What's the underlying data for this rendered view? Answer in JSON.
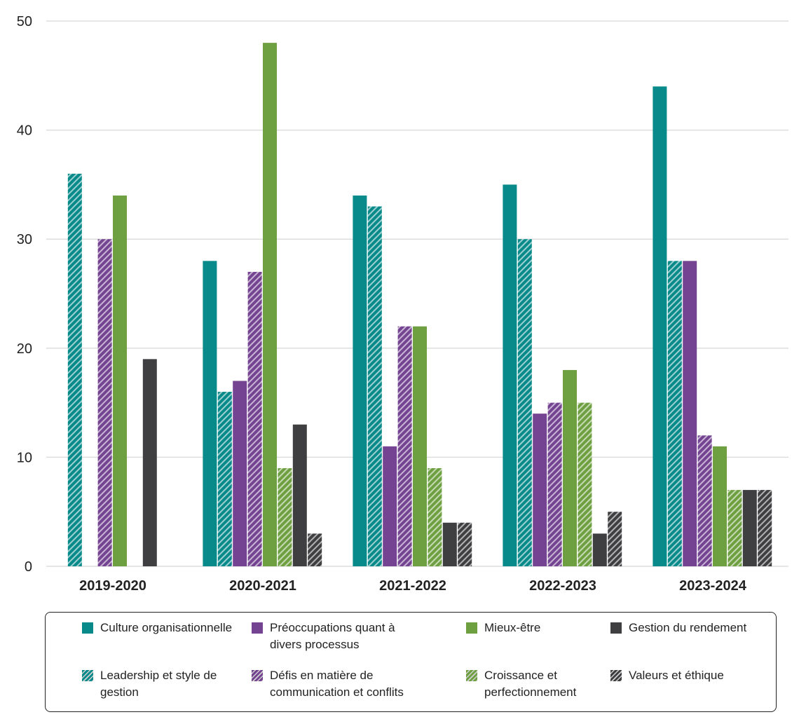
{
  "chart_data": {
    "type": "bar",
    "categories": [
      "2019-2020",
      "2020-2021",
      "2021-2022",
      "2022-2023",
      "2023-2024"
    ],
    "ylim": [
      0,
      50
    ],
    "yticks": [
      0,
      10,
      20,
      30,
      40,
      50
    ],
    "grid": true,
    "legend_placement": "bottom",
    "series": [
      {
        "name": "Culture organisationnelle",
        "color": "#088a8a",
        "hatched": false,
        "values": [
          0,
          28,
          34,
          35,
          44
        ]
      },
      {
        "name": "Leadership et style de gestion",
        "color": "#088a8a",
        "hatched": true,
        "values": [
          36,
          16,
          33,
          30,
          28
        ]
      },
      {
        "name": "Préoccupations quant à divers processus",
        "color": "#744391",
        "hatched": false,
        "values": [
          0,
          17,
          11,
          14,
          28
        ]
      },
      {
        "name": "Défis en matière de communication et conflits",
        "color": "#744391",
        "hatched": true,
        "values": [
          30,
          27,
          22,
          15,
          12
        ]
      },
      {
        "name": "Mieux-être",
        "color": "#6ea041",
        "hatched": false,
        "values": [
          34,
          48,
          22,
          18,
          11
        ]
      },
      {
        "name": "Croissance et perfectionnement",
        "color": "#6ea041",
        "hatched": true,
        "values": [
          0,
          9,
          9,
          15,
          7
        ]
      },
      {
        "name": "Gestion du rendement",
        "color": "#3f3f41",
        "hatched": false,
        "values": [
          19,
          13,
          4,
          3,
          7
        ]
      },
      {
        "name": "Valeurs et éthique",
        "color": "#3f3f41",
        "hatched": true,
        "values": [
          0,
          3,
          4,
          5,
          7
        ]
      }
    ]
  }
}
